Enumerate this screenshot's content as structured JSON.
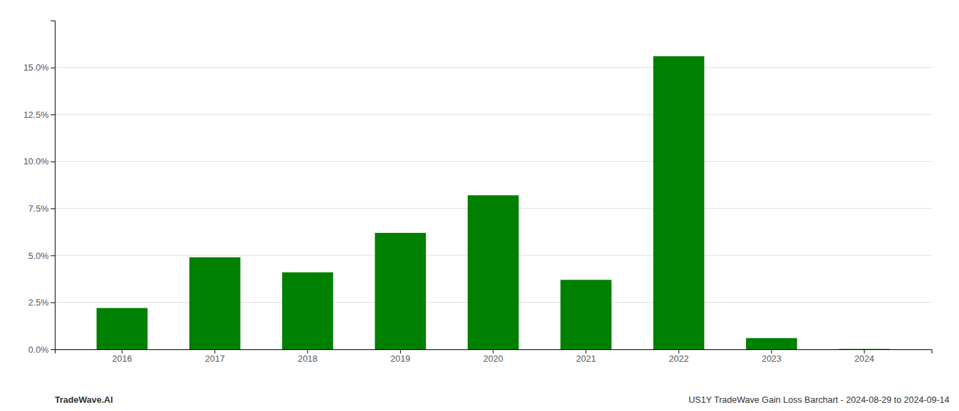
{
  "chart_data": {
    "type": "bar",
    "categories": [
      "2016",
      "2017",
      "2018",
      "2019",
      "2020",
      "2021",
      "2022",
      "2023",
      "2024"
    ],
    "values": [
      0.022,
      0.049,
      0.041,
      0.062,
      0.082,
      0.037,
      0.156,
      0.006,
      0.0002
    ],
    "color": "#008000",
    "ylim": [
      0,
      0.175
    ],
    "yticks": [
      {
        "value": 0.0,
        "label": "0.0%"
      },
      {
        "value": 0.025,
        "label": "2.5%"
      },
      {
        "value": 0.05,
        "label": "5.0%"
      },
      {
        "value": 0.075,
        "label": "7.5%"
      },
      {
        "value": 0.1,
        "label": "10.0%"
      },
      {
        "value": 0.125,
        "label": "12.5%"
      },
      {
        "value": 0.15,
        "label": "15.0%"
      }
    ],
    "grid": true,
    "annotations": [
      "TradeWave.AI",
      "US1Y TradeWave Gain Loss Barchart - 2024-08-29 to 2024-09-14"
    ]
  }
}
